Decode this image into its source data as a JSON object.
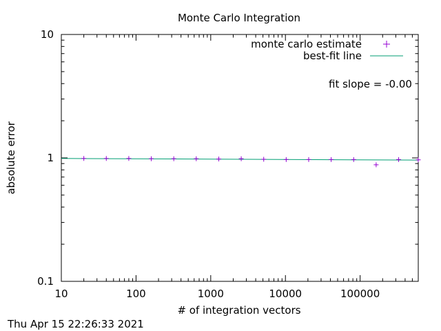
{
  "chart_data": {
    "type": "scatter",
    "title": "Monte Carlo Integration",
    "xlabel": "# of integration vectors",
    "ylabel": "absolute error",
    "x_scale": "log",
    "y_scale": "log",
    "xlim": [
      10,
      600000
    ],
    "ylim": [
      0.1,
      10
    ],
    "x_tick_labels": [
      "10",
      "100",
      "1000",
      "10000",
      "100000"
    ],
    "x_tick_values": [
      10,
      100,
      1000,
      10000,
      100000
    ],
    "y_tick_labels": [
      "0.1",
      "1",
      "10"
    ],
    "y_tick_values": [
      0.1,
      1,
      10
    ],
    "grid": false,
    "legend_position": "top-right",
    "series": [
      {
        "name": "monte carlo estimate",
        "marker": "+",
        "color": "#9400d3",
        "x": [
          20,
          40,
          80,
          160,
          320,
          640,
          1280,
          2560,
          5120,
          10240,
          20480,
          40960,
          81920,
          163840,
          327680,
          600000
        ],
        "y": [
          0.99,
          0.99,
          0.99,
          0.985,
          0.985,
          0.985,
          0.98,
          0.985,
          0.975,
          0.97,
          0.97,
          0.97,
          0.97,
          0.88,
          0.97,
          0.965
        ]
      },
      {
        "name": "best-fit line",
        "style": "line",
        "color": "#009e73",
        "x": [
          10,
          600000
        ],
        "y": [
          0.99,
          0.96
        ]
      }
    ],
    "annotation": "fit slope = -0.00",
    "footer_timestamp": "Thu Apr 15 22:26:33 2021"
  }
}
